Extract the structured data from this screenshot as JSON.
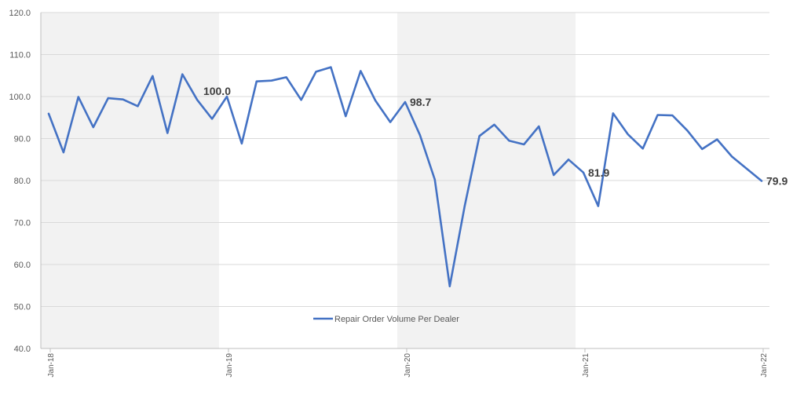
{
  "chart_data": {
    "type": "line",
    "title": "",
    "xlabel": "",
    "ylabel": "",
    "ylim": [
      40,
      120
    ],
    "y_ticks": [
      "40.0",
      "50.0",
      "60.0",
      "70.0",
      "80.0",
      "90.0",
      "100.0",
      "110.0",
      "120.0"
    ],
    "x_ticks": [
      {
        "label": "Jan-18",
        "index": 0
      },
      {
        "label": "Jan-19",
        "index": 12
      },
      {
        "label": "Jan-20",
        "index": 24
      },
      {
        "label": "Jan-21",
        "index": 36
      },
      {
        "label": "Jan-22",
        "index": 48
      }
    ],
    "shaded_periods": [
      [
        2018,
        2019
      ],
      [
        2020,
        2021
      ]
    ],
    "legend": {
      "position": "bottom-center"
    },
    "grid": true,
    "colors": {
      "line": "#4472C4",
      "shade": "#F2F2F2",
      "grid": "#D9D9D9",
      "axis": "#BFBFBF"
    },
    "series": [
      {
        "name": "Repair Order Volume Per Dealer",
        "values": [
          95.9,
          86.7,
          99.9,
          92.7,
          99.6,
          99.3,
          97.7,
          104.9,
          91.3,
          105.3,
          99.2,
          94.7,
          100.0,
          88.8,
          103.6,
          103.8,
          104.6,
          99.2,
          105.9,
          107.0,
          95.3,
          106.1,
          99.0,
          93.9,
          98.7,
          90.8,
          80.2,
          54.8,
          73.8,
          90.6,
          93.3,
          89.5,
          88.6,
          92.9,
          81.3,
          85.0,
          81.9,
          73.9,
          96.0,
          91.0,
          87.6,
          95.6,
          95.5,
          91.9,
          87.5,
          89.8,
          85.7,
          82.8,
          79.9
        ]
      }
    ],
    "data_labels": [
      {
        "index": 12,
        "text": "100.0"
      },
      {
        "index": 24,
        "text": "98.7"
      },
      {
        "index": 36,
        "text": "81.9"
      },
      {
        "index": 48,
        "text": "79.9"
      }
    ]
  }
}
